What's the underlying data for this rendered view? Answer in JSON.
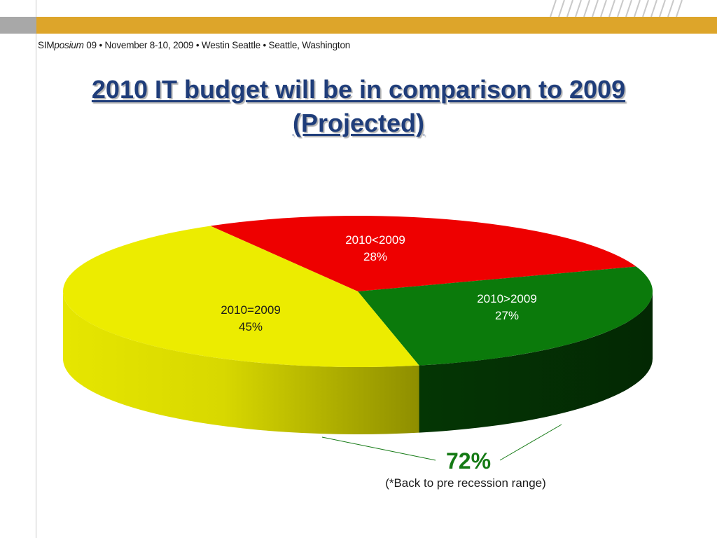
{
  "header": {
    "conference_brand_plain": "SIM",
    "conference_brand_italic": "posium",
    "conference_rest": " 09  •  November 8-10, 2009  •  Westin Seattle  •  Seattle, Washington"
  },
  "colors": {
    "red": "#ee0000",
    "green": "#0b7a0b",
    "yellow": "#ecec00",
    "title": "#1f3d7a",
    "accent_bar": "#dda52a",
    "callout": "#157a15"
  },
  "chart_data": {
    "type": "pie",
    "title": "2010 IT budget will be in comparison to 2009 (Projected)",
    "categories": [
      "2010<2009",
      "2010>2009",
      "2010=2009"
    ],
    "values": [
      28,
      27,
      45
    ],
    "value_labels": [
      "28%",
      "27%",
      "45%"
    ],
    "legend": "none",
    "annotation": {
      "value": "72%",
      "note": "(*Back to pre recession range)"
    }
  }
}
